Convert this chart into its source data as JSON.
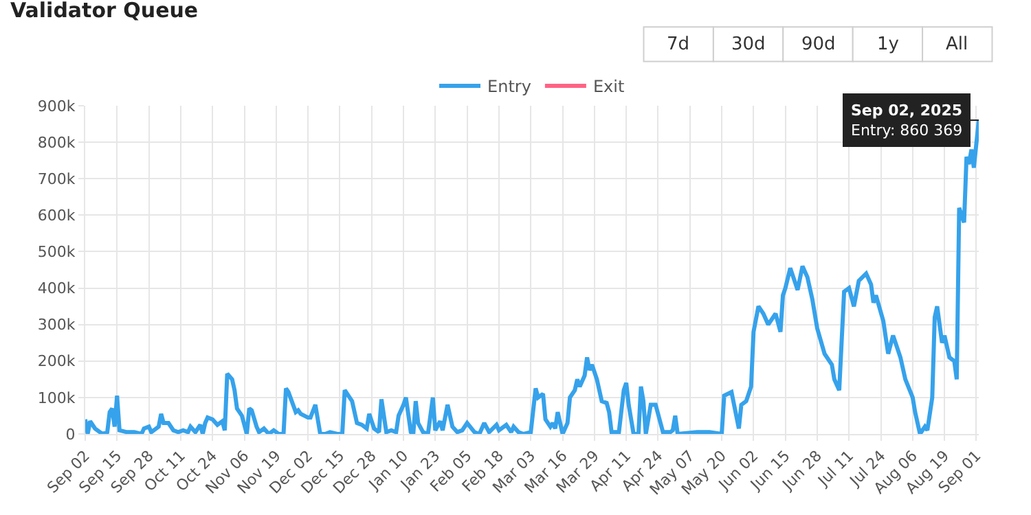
{
  "chart_data": {
    "type": "line",
    "title": "Validator Queue",
    "x": [
      "2024-09-02",
      "2024-09-03",
      "2024-09-04",
      "2024-09-06",
      "2024-09-09",
      "2024-09-11",
      "2024-09-12",
      "2024-09-13",
      "2024-09-14",
      "2024-09-15",
      "2024-09-16",
      "2024-09-19",
      "2024-09-22",
      "2024-09-25",
      "2024-09-26",
      "2024-09-28",
      "2024-09-29",
      "2024-10-02",
      "2024-10-03",
      "2024-10-04",
      "2024-10-06",
      "2024-10-08",
      "2024-10-10",
      "2024-10-12",
      "2024-10-14",
      "2024-10-15",
      "2024-10-17",
      "2024-10-19",
      "2024-10-20",
      "2024-10-21",
      "2024-10-22",
      "2024-10-24",
      "2024-10-26",
      "2024-10-28",
      "2024-10-29",
      "2024-10-30",
      "2024-11-01",
      "2024-11-02",
      "2024-11-03",
      "2024-11-05",
      "2024-11-06",
      "2024-11-07",
      "2024-11-08",
      "2024-11-09",
      "2024-11-11",
      "2024-11-12",
      "2024-11-14",
      "2024-11-16",
      "2024-11-18",
      "2024-11-20",
      "2024-11-22",
      "2024-11-23",
      "2024-11-24",
      "2024-11-27",
      "2024-11-28",
      "2024-11-29",
      "2024-12-02",
      "2024-12-03",
      "2024-12-05",
      "2024-12-06",
      "2024-12-07",
      "2024-12-09",
      "2024-12-11",
      "2024-12-14",
      "2024-12-16",
      "2024-12-17",
      "2024-12-20",
      "2024-12-22",
      "2024-12-24",
      "2024-12-26",
      "2024-12-27",
      "2024-12-29",
      "2024-12-31",
      "2025-01-01",
      "2025-01-03",
      "2025-01-05",
      "2025-01-07",
      "2025-01-08",
      "2025-01-10",
      "2025-01-11",
      "2025-01-13",
      "2025-01-14",
      "2025-01-15",
      "2025-01-16",
      "2025-01-18",
      "2025-01-20",
      "2025-01-22",
      "2025-01-23",
      "2025-01-25",
      "2025-01-26",
      "2025-01-28",
      "2025-01-30",
      "2025-02-01",
      "2025-02-03",
      "2025-02-05",
      "2025-02-08",
      "2025-02-10",
      "2025-02-12",
      "2025-02-14",
      "2025-02-17",
      "2025-02-18",
      "2025-02-21",
      "2025-02-23",
      "2025-02-24",
      "2025-02-26",
      "2025-02-28",
      "2025-03-03",
      "2025-03-05",
      "2025-03-06",
      "2025-03-08",
      "2025-03-09",
      "2025-03-11",
      "2025-03-12",
      "2025-03-13",
      "2025-03-14",
      "2025-03-16",
      "2025-03-18",
      "2025-03-19",
      "2025-03-21",
      "2025-03-22",
      "2025-03-23",
      "2025-03-25",
      "2025-03-26",
      "2025-03-27",
      "2025-03-28",
      "2025-03-30",
      "2025-04-01",
      "2025-04-03",
      "2025-04-04",
      "2025-04-05",
      "2025-04-08",
      "2025-04-10",
      "2025-04-11",
      "2025-04-12",
      "2025-04-14",
      "2025-04-16",
      "2025-04-17",
      "2025-04-18",
      "2025-04-19",
      "2025-04-21",
      "2025-04-23",
      "2025-04-25",
      "2025-04-26",
      "2025-04-29",
      "2025-04-30",
      "2025-05-01",
      "2025-05-02",
      "2025-05-10",
      "2025-05-15",
      "2025-05-20",
      "2025-05-21",
      "2025-05-24",
      "2025-05-27",
      "2025-05-28",
      "2025-05-30",
      "2025-06-01",
      "2025-06-02",
      "2025-06-04",
      "2025-06-06",
      "2025-06-08",
      "2025-06-11",
      "2025-06-13",
      "2025-06-14",
      "2025-06-15",
      "2025-06-17",
      "2025-06-20",
      "2025-06-22",
      "2025-06-24",
      "2025-06-26",
      "2025-06-28",
      "2025-07-01",
      "2025-07-04",
      "2025-07-05",
      "2025-07-07",
      "2025-07-09",
      "2025-07-11",
      "2025-07-13",
      "2025-07-15",
      "2025-07-18",
      "2025-07-20",
      "2025-07-21",
      "2025-07-22",
      "2025-07-25",
      "2025-07-27",
      "2025-07-29",
      "2025-08-01",
      "2025-08-03",
      "2025-08-06",
      "2025-08-07",
      "2025-08-09",
      "2025-08-11",
      "2025-08-12",
      "2025-08-14",
      "2025-08-15",
      "2025-08-16",
      "2025-08-18",
      "2025-08-19",
      "2025-08-21",
      "2025-08-23",
      "2025-08-24",
      "2025-08-25",
      "2025-08-27",
      "2025-08-28",
      "2025-08-29",
      "2025-08-30",
      "2025-08-31",
      "2025-09-02"
    ],
    "series": [
      {
        "name": "Entry",
        "color": "#36a2eb",
        "values": [
          40000,
          0,
          35000,
          15000,
          0,
          5000,
          60000,
          70000,
          20000,
          105000,
          10000,
          5000,
          5000,
          0,
          15000,
          20000,
          5000,
          20000,
          55000,
          30000,
          30000,
          10000,
          5000,
          10000,
          5000,
          20000,
          5000,
          25000,
          0,
          30000,
          45000,
          40000,
          25000,
          35000,
          10000,
          165000,
          150000,
          120000,
          70000,
          50000,
          25000,
          0,
          70000,
          65000,
          20000,
          5000,
          15000,
          0,
          10000,
          0,
          0,
          125000,
          115000,
          60000,
          65000,
          55000,
          45000,
          45000,
          80000,
          40000,
          0,
          0,
          5000,
          0,
          0,
          120000,
          90000,
          30000,
          25000,
          15000,
          55000,
          15000,
          5000,
          95000,
          5000,
          10000,
          5000,
          50000,
          80000,
          100000,
          5000,
          0,
          90000,
          30000,
          5000,
          0,
          100000,
          10000,
          35000,
          10000,
          80000,
          20000,
          5000,
          10000,
          30000,
          5000,
          0,
          30000,
          5000,
          25000,
          10000,
          25000,
          5000,
          20000,
          5000,
          0,
          5000,
          125000,
          100000,
          110000,
          40000,
          20000,
          30000,
          15000,
          60000,
          0,
          30000,
          100000,
          120000,
          150000,
          130000,
          160000,
          210000,
          175000,
          190000,
          150000,
          90000,
          85000,
          60000,
          5000,
          5000,
          120000,
          140000,
          80000,
          0,
          0,
          130000,
          90000,
          0,
          80000,
          80000,
          30000,
          5000,
          5000,
          10000,
          50000,
          0,
          5000,
          5000,
          0,
          105000,
          115000,
          15000,
          80000,
          90000,
          130000,
          280000,
          350000,
          330000,
          300000,
          330000,
          280000,
          380000,
          400000,
          455000,
          395000,
          460000,
          430000,
          370000,
          290000,
          220000,
          190000,
          150000,
          120000,
          390000,
          400000,
          350000,
          420000,
          440000,
          410000,
          360000,
          380000,
          310000,
          220000,
          270000,
          210000,
          150000,
          100000,
          60000,
          0,
          20000,
          10000,
          100000,
          320000,
          350000,
          250000,
          270000,
          210000,
          200000,
          150000,
          620000,
          580000,
          760000,
          740000,
          780000,
          730000,
          860369
        ]
      },
      {
        "name": "Exit",
        "color": "#ff6384",
        "values": [
          null,
          null,
          null,
          null,
          null,
          null,
          null,
          null,
          null,
          null,
          null,
          null,
          null,
          null,
          null,
          null,
          null,
          null,
          null,
          null,
          null,
          null,
          null,
          null,
          null,
          null,
          null,
          null,
          null,
          null,
          null,
          null,
          null,
          null,
          null,
          null,
          null,
          null,
          null,
          null,
          null,
          null,
          null,
          null,
          null,
          null,
          null,
          null,
          null,
          null,
          null,
          null,
          null,
          null,
          null,
          null,
          null,
          null,
          null,
          null,
          null,
          null,
          null,
          null,
          null,
          null,
          null,
          null,
          null,
          null,
          null,
          null,
          null,
          null,
          null,
          null,
          null,
          null,
          null,
          null,
          null,
          null,
          null,
          null,
          null,
          null,
          null,
          null,
          null,
          null,
          null,
          null,
          null,
          null,
          null,
          null,
          null,
          null,
          null,
          null,
          null,
          null,
          null,
          null,
          null,
          null,
          null,
          null,
          null,
          null,
          null,
          null,
          null,
          null,
          null,
          null,
          null,
          null,
          null,
          null,
          null,
          null,
          null,
          null,
          null,
          null,
          null,
          null,
          null,
          null,
          null,
          null,
          null,
          null,
          null,
          null,
          null,
          null,
          null,
          null,
          null,
          null,
          null,
          null,
          null,
          null,
          null,
          null,
          null,
          null,
          null,
          null,
          null,
          null,
          null,
          null,
          null,
          null,
          null,
          null,
          null,
          null,
          null,
          null,
          null,
          null,
          null,
          null,
          null,
          null,
          null,
          null,
          null,
          null,
          null,
          null,
          null,
          null,
          null,
          null,
          null,
          null,
          null,
          null,
          null,
          null,
          null,
          null,
          null,
          null,
          null,
          null,
          null,
          null,
          null,
          null,
          null,
          null,
          null,
          null,
          null,
          null,
          null,
          null,
          null,
          null,
          null
        ]
      }
    ],
    "xlim": [
      "2024-09-02",
      "2025-09-02"
    ],
    "xticks": [
      {
        "value": "2024-09-02",
        "label": "Sep 02"
      },
      {
        "value": "2024-09-15",
        "label": "Sep 15"
      },
      {
        "value": "2024-09-28",
        "label": "Sep 28"
      },
      {
        "value": "2024-10-11",
        "label": "Oct 11"
      },
      {
        "value": "2024-10-24",
        "label": "Oct 24"
      },
      {
        "value": "2024-11-06",
        "label": "Nov 06"
      },
      {
        "value": "2024-11-19",
        "label": "Nov 19"
      },
      {
        "value": "2024-12-02",
        "label": "Dec 02"
      },
      {
        "value": "2024-12-15",
        "label": "Dec 15"
      },
      {
        "value": "2024-12-28",
        "label": "Dec 28"
      },
      {
        "value": "2025-01-10",
        "label": "Jan 10"
      },
      {
        "value": "2025-01-23",
        "label": "Jan 23"
      },
      {
        "value": "2025-02-05",
        "label": "Feb 05"
      },
      {
        "value": "2025-02-18",
        "label": "Feb 18"
      },
      {
        "value": "2025-03-03",
        "label": "Mar 03"
      },
      {
        "value": "2025-03-16",
        "label": "Mar 16"
      },
      {
        "value": "2025-03-29",
        "label": "Mar 29"
      },
      {
        "value": "2025-04-11",
        "label": "Apr 11"
      },
      {
        "value": "2025-04-24",
        "label": "Apr 24"
      },
      {
        "value": "2025-05-07",
        "label": "May 07"
      },
      {
        "value": "2025-05-20",
        "label": "May 20"
      },
      {
        "value": "2025-06-02",
        "label": "Jun 02"
      },
      {
        "value": "2025-06-15",
        "label": "Jun 15"
      },
      {
        "value": "2025-06-28",
        "label": "Jun 28"
      },
      {
        "value": "2025-07-11",
        "label": "Jul 11"
      },
      {
        "value": "2025-07-24",
        "label": "Jul 24"
      },
      {
        "value": "2025-08-06",
        "label": "Aug 06"
      },
      {
        "value": "2025-08-19",
        "label": "Aug 19"
      },
      {
        "value": "2025-09-01",
        "label": "Sep 01"
      }
    ],
    "ylim": [
      0,
      900000
    ],
    "yticks": [
      0,
      {
        "value": 100000,
        "label": "100k"
      },
      {
        "value": 200000,
        "label": "200k"
      },
      {
        "value": 300000,
        "label": "300k"
      },
      {
        "value": 400000,
        "label": "400k"
      },
      {
        "value": 500000,
        "label": "500k"
      },
      {
        "value": 600000,
        "label": "600k"
      },
      {
        "value": 700000,
        "label": "700k"
      },
      {
        "value": 800000,
        "label": "800k"
      },
      {
        "value": 900000,
        "label": "900k"
      }
    ],
    "grid": true,
    "legend": "top",
    "marker": "none",
    "line_style": "solid",
    "annotations": [
      "7d",
      "30d",
      "90d",
      "1y",
      "All",
      {
        "text": "Sep 02, 2025\nEntry: 860 369",
        "x": "2025-09-02",
        "y": 860369
      }
    ]
  }
}
